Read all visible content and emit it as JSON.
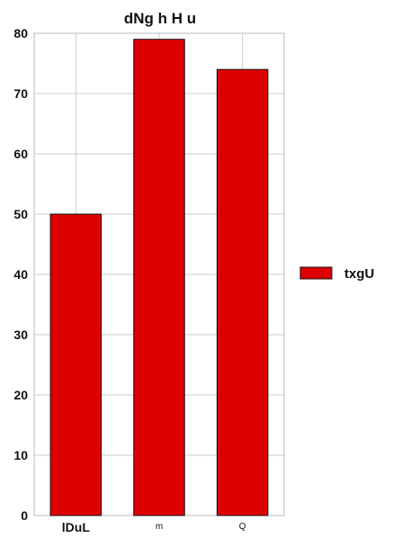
{
  "chart_data": {
    "type": "bar",
    "title": "dNg h H u",
    "categories": [
      "lDuL",
      "m",
      "Q"
    ],
    "series": [
      {
        "name": "txgU",
        "values": [
          50,
          79,
          74
        ],
        "color": "#dd0000"
      }
    ],
    "xlabel": "",
    "ylabel": "",
    "ylim": [
      0,
      80
    ],
    "yticks": [
      0,
      10,
      20,
      30,
      40,
      50,
      60,
      70,
      80
    ],
    "grid": true,
    "legend_position": "right",
    "colors": {
      "bar": "#dd0000",
      "bar_edge": "#111111",
      "grid": "#cccccc"
    }
  }
}
